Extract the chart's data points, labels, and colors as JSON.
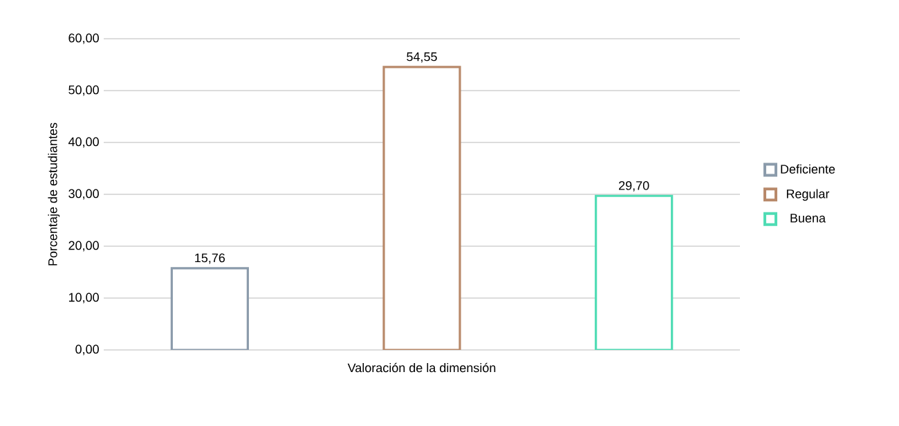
{
  "chart_data": {
    "type": "bar",
    "xlabel": "Valoración de la dimensión",
    "ylabel": "Porcentaje de estudiantes",
    "categories": [
      null,
      null,
      null
    ],
    "series": [
      {
        "name": "Deficiente",
        "color": "#8b9bab",
        "values": [
          15.76,
          null,
          null
        ],
        "value_labels": [
          "15,76",
          null,
          null
        ]
      },
      {
        "name": "Regular",
        "color": "#b8896a",
        "values": [
          null,
          54.55,
          null
        ],
        "value_labels": [
          null,
          "54,55",
          null
        ]
      },
      {
        "name": "Buena",
        "color": "#4fdcb4",
        "values": [
          null,
          null,
          29.7
        ],
        "value_labels": [
          null,
          null,
          "29,70"
        ]
      }
    ],
    "ylim": [
      0,
      60
    ],
    "yticks": [
      {
        "value": 0,
        "label": "0,00"
      },
      {
        "value": 10,
        "label": "10,00"
      },
      {
        "value": 20,
        "label": "20,00"
      },
      {
        "value": 30,
        "label": "30,00"
      },
      {
        "value": 40,
        "label": "40,00"
      },
      {
        "value": 50,
        "label": "50,00"
      },
      {
        "value": 60,
        "label": "60,00"
      }
    ],
    "grid": "y",
    "legend": "right"
  }
}
